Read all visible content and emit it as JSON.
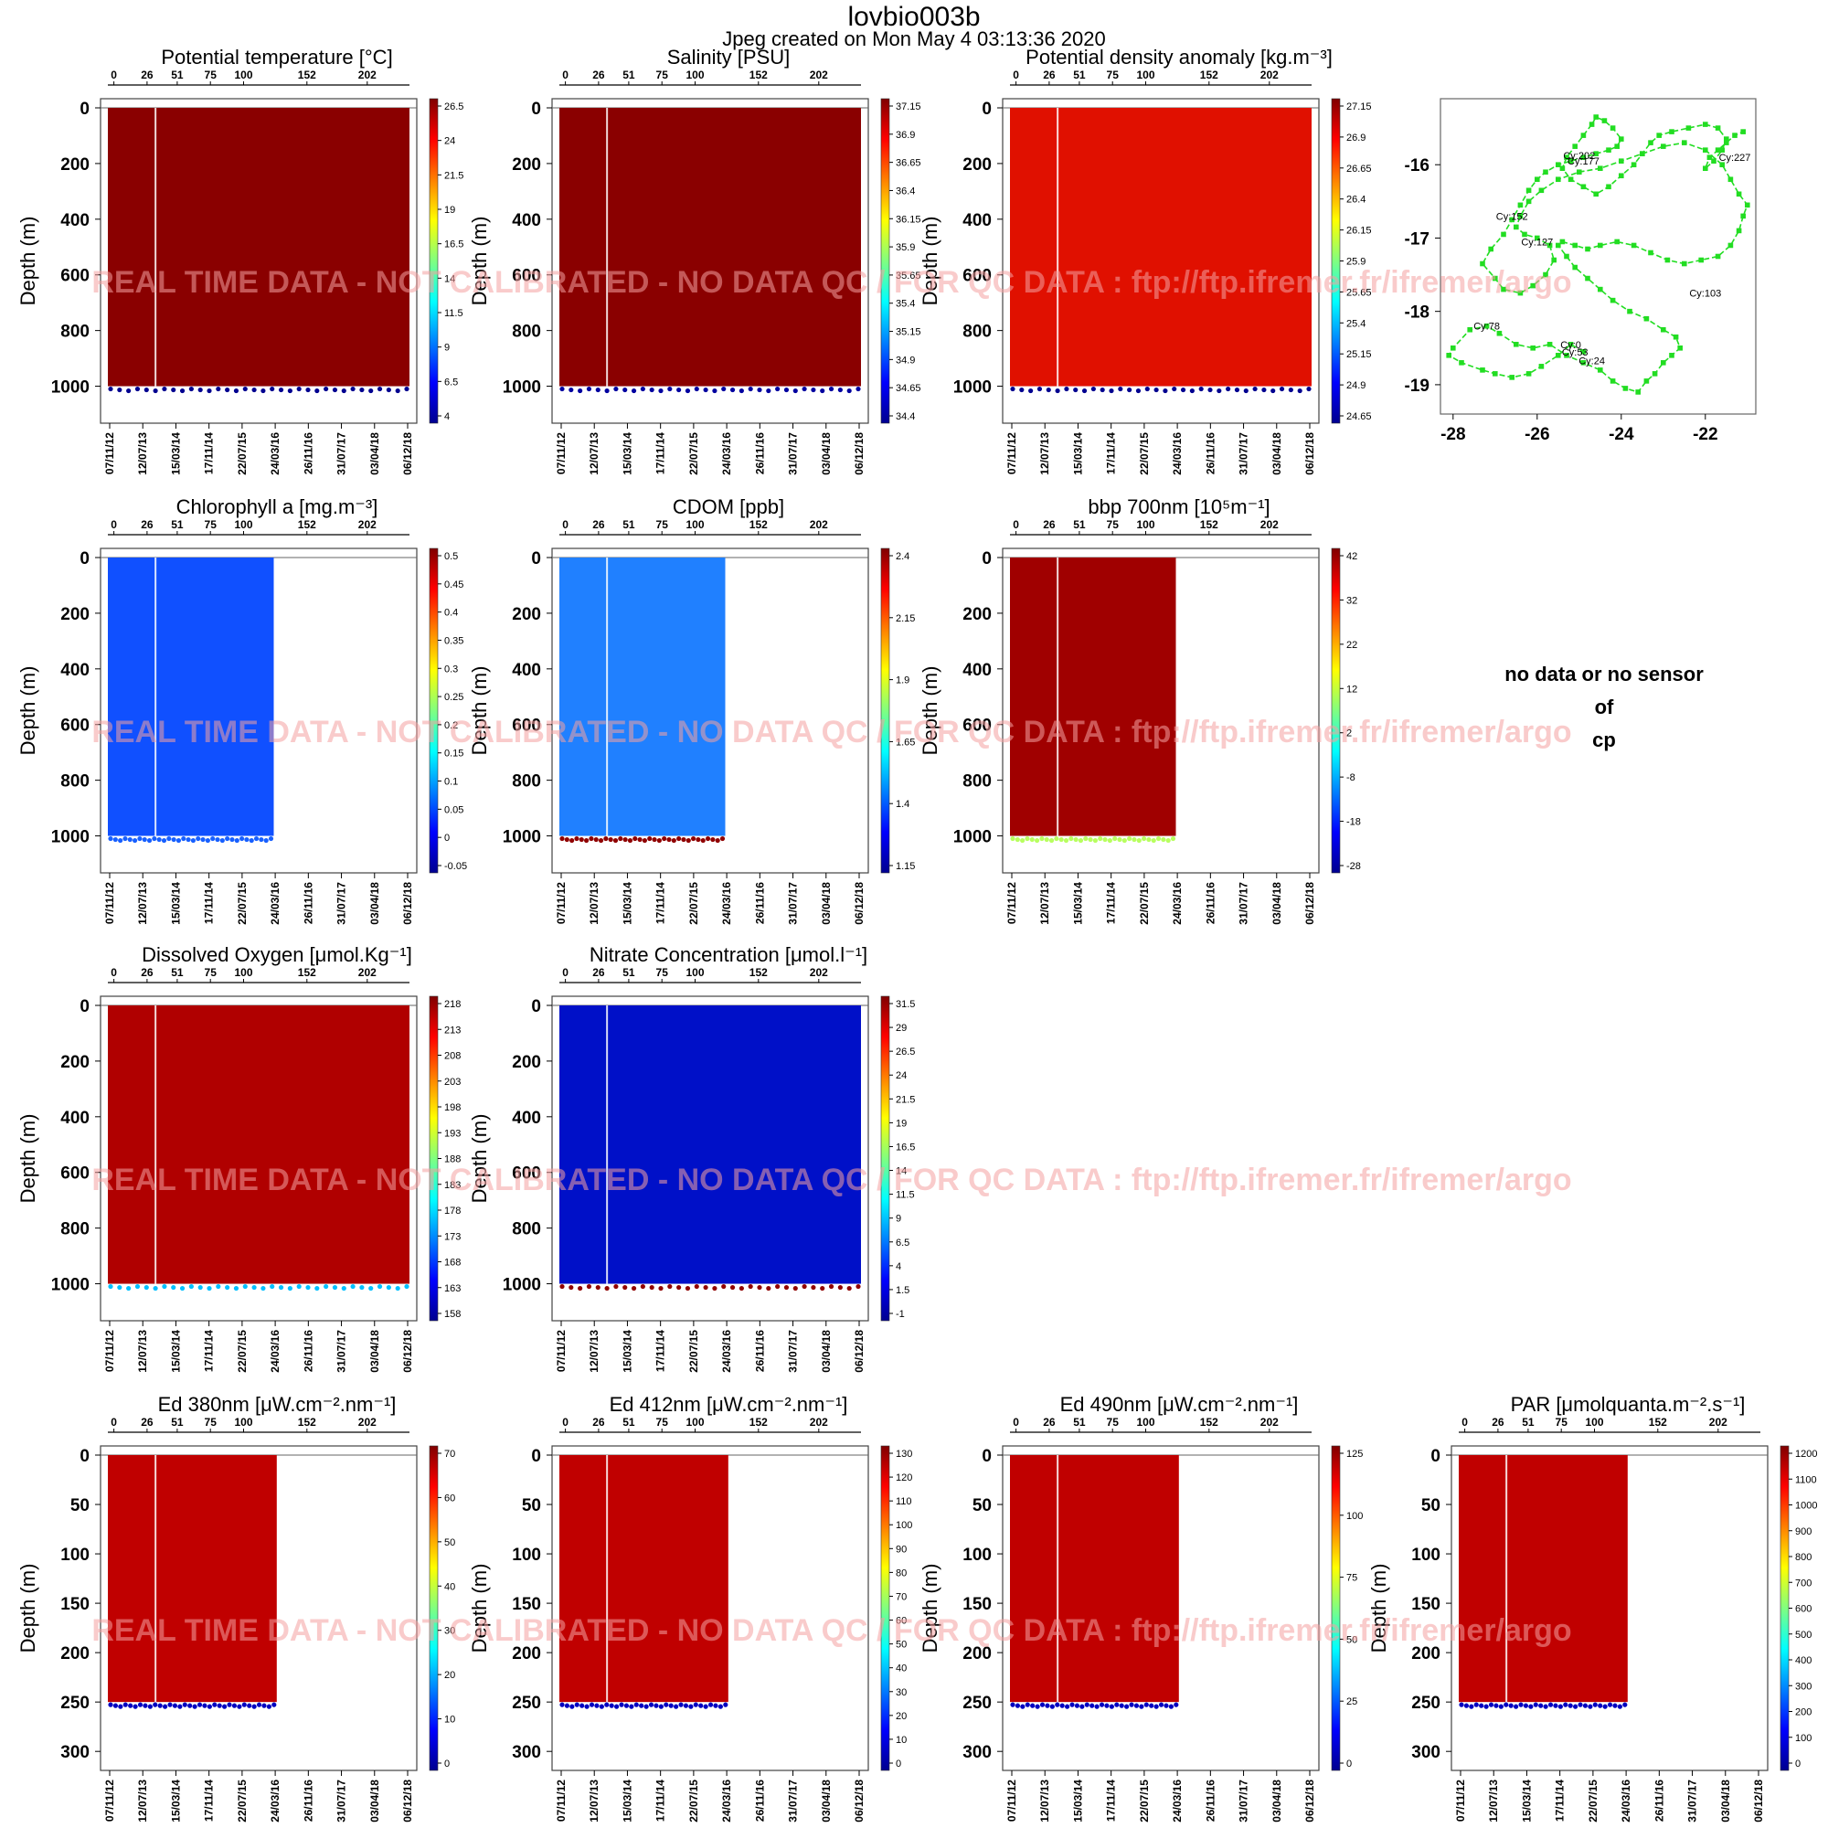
{
  "page": {
    "title": "lovbio003b",
    "subtitle": "Jpeg created on  Mon May  4 03:13:36 2020",
    "watermark": "REAL TIME DATA - NOT CALIBRATED - NO DATA QC  /  FOR QC DATA : ftp://ftp.ifremer.fr/ifremer/argo",
    "no_data_lines": [
      "no data or no sensor",
      "of",
      "cp"
    ]
  },
  "colors": {
    "jet": [
      "#00008f",
      "#0000ff",
      "#0080ff",
      "#00ffff",
      "#80ff80",
      "#ffff00",
      "#ff8000",
      "#ff0000",
      "#800000"
    ],
    "track": "#22dd22",
    "watermark": "#f4a0a0"
  },
  "chart_data": [
    {
      "type": "heatmap",
      "id": "temp",
      "title": "Potential temperature [°C]",
      "ylabel": "Depth (m)",
      "cycle_ticks": [
        "0",
        "26",
        "51",
        "75",
        "100",
        "152",
        "202"
      ],
      "date_ticks": [
        "07/11/12",
        "12/07/13",
        "15/03/14",
        "17/11/14",
        "22/07/15",
        "24/03/16",
        "26/11/16",
        "31/07/17",
        "03/04/18",
        "06/12/18"
      ],
      "y_ticks": [
        "0",
        "200",
        "400",
        "600",
        "800",
        "1000"
      ],
      "colorbar_ticks": [
        "26.5",
        "24",
        "21.5",
        "19",
        "16.5",
        "14",
        "11.5",
        "9",
        "6.5",
        "4"
      ],
      "data_extent": 1.0,
      "profile_depth_max": 1000,
      "ylim": [
        1100,
        0
      ]
    },
    {
      "type": "heatmap",
      "id": "salinity",
      "title": "Salinity [PSU]",
      "ylabel": "Depth (m)",
      "cycle_ticks": [
        "0",
        "26",
        "51",
        "75",
        "100",
        "152",
        "202"
      ],
      "date_ticks": [
        "07/11/12",
        "12/07/13",
        "15/03/14",
        "17/11/14",
        "22/07/15",
        "24/03/16",
        "26/11/16",
        "31/07/17",
        "03/04/18",
        "06/12/18"
      ],
      "y_ticks": [
        "0",
        "200",
        "400",
        "600",
        "800",
        "1000"
      ],
      "colorbar_ticks": [
        "37.15",
        "36.9",
        "36.65",
        "36.4",
        "36.15",
        "35.9",
        "35.65",
        "35.4",
        "35.15",
        "34.9",
        "34.65",
        "34.4"
      ],
      "data_extent": 1.0,
      "profile_depth_max": 1000,
      "ylim": [
        1100,
        0
      ]
    },
    {
      "type": "heatmap",
      "id": "density",
      "title": "Potential density anomaly [kg.m⁻³]",
      "ylabel": "Depth (m)",
      "cycle_ticks": [
        "0",
        "26",
        "51",
        "75",
        "100",
        "152",
        "202"
      ],
      "date_ticks": [
        "07/11/12",
        "12/07/13",
        "15/03/14",
        "17/11/14",
        "22/07/15",
        "24/03/16",
        "26/11/16",
        "31/07/17",
        "03/04/18",
        "06/12/18"
      ],
      "y_ticks": [
        "0",
        "200",
        "400",
        "600",
        "800",
        "1000"
      ],
      "colorbar_ticks": [
        "27.15",
        "26.9",
        "26.65",
        "26.4",
        "26.15",
        "25.9",
        "25.65",
        "25.4",
        "25.15",
        "24.9",
        "24.65"
      ],
      "data_extent": 1.0,
      "profile_depth_max": 1000,
      "ylim": [
        1100,
        0
      ]
    },
    {
      "type": "scatter",
      "id": "trajectory",
      "x_ticks": [
        "-28",
        "-26",
        "-24",
        "-22"
      ],
      "y_ticks": [
        "-16",
        "-17",
        "-18",
        "-19"
      ],
      "xlim": [
        -28.3,
        -20.8
      ],
      "ylim": [
        -19.4,
        -15.1
      ],
      "labels": [
        {
          "text": "Cy:227",
          "lon": -21.3,
          "lat": -15.95
        },
        {
          "text": "Cy:202",
          "lon": -25.0,
          "lat": -15.92
        },
        {
          "text": "Cy:177",
          "lon": -24.9,
          "lat": -16.0
        },
        {
          "text": "Cy:152",
          "lon": -26.6,
          "lat": -16.75
        },
        {
          "text": "Cy:127",
          "lon": -26.0,
          "lat": -17.1
        },
        {
          "text": "Cy:103",
          "lon": -22.0,
          "lat": -17.8
        },
        {
          "text": "Cy:78",
          "lon": -27.2,
          "lat": -18.25
        },
        {
          "text": "Cy:0",
          "lon": -25.2,
          "lat": -18.5
        },
        {
          "text": "Cy:53",
          "lon": -25.1,
          "lat": -18.6
        },
        {
          "text": "Cy:24",
          "lon": -24.7,
          "lat": -18.72
        }
      ],
      "lon": [
        -24.9,
        -25.2,
        -25.5,
        -25.9,
        -26.2,
        -26.6,
        -27.0,
        -27.3,
        -27.8,
        -28.1,
        -28.0,
        -27.6,
        -27.2,
        -26.9,
        -26.5,
        -26.1,
        -25.7,
        -25.3,
        -24.9,
        -24.5,
        -24.2,
        -23.9,
        -23.6,
        -23.4,
        -23.2,
        -23.0,
        -22.8,
        -22.6,
        -22.7,
        -23.0,
        -23.4,
        -23.8,
        -24.2,
        -24.5,
        -24.8,
        -25.1,
        -25.3,
        -25.5,
        -25.4,
        -25.1,
        -24.8,
        -24.5,
        -24.1,
        -23.7,
        -23.3,
        -22.9,
        -22.5,
        -22.1,
        -21.7,
        -21.4,
        -21.2,
        -21.1,
        -21.0,
        -21.2,
        -21.4,
        -21.6,
        -22.0,
        -22.5,
        -23.0,
        -23.5,
        -24.0,
        -24.5,
        -25.0,
        -25.5,
        -25.9,
        -26.2,
        -26.4,
        -26.5,
        -26.3,
        -26.0,
        -25.7,
        -25.6,
        -25.8,
        -26.1,
        -26.4,
        -26.8,
        -27.0,
        -27.3,
        -27.1,
        -26.8,
        -26.6,
        -26.4,
        -26.2,
        -26.0,
        -25.8,
        -25.5,
        -25.2,
        -24.9,
        -24.6,
        -24.3,
        -24.1,
        -24.0,
        -24.2,
        -24.4,
        -24.6,
        -24.7,
        -24.9,
        -25.1,
        -25.3,
        -25.4,
        -25.2,
        -24.9,
        -24.6,
        -24.3,
        -24.0,
        -23.7,
        -23.5,
        -23.3,
        -23.1,
        -22.8,
        -22.4,
        -22.0,
        -21.7,
        -21.5,
        -21.6,
        -21.8,
        -22.0,
        -21.9,
        -21.7,
        -21.5,
        -21.3,
        -21.1
      ],
      "lat": [
        -18.55,
        -18.45,
        -18.6,
        -18.75,
        -18.85,
        -18.9,
        -18.85,
        -18.8,
        -18.7,
        -18.6,
        -18.5,
        -18.25,
        -18.2,
        -18.3,
        -18.45,
        -18.5,
        -18.45,
        -18.6,
        -18.7,
        -18.8,
        -18.95,
        -19.05,
        -19.1,
        -18.95,
        -18.85,
        -18.7,
        -18.6,
        -18.5,
        -18.35,
        -18.25,
        -18.1,
        -18.0,
        -17.85,
        -17.7,
        -17.55,
        -17.4,
        -17.25,
        -17.1,
        -17.05,
        -17.1,
        -17.15,
        -17.1,
        -17.05,
        -17.1,
        -17.2,
        -17.3,
        -17.35,
        -17.3,
        -17.25,
        -17.1,
        -16.9,
        -16.7,
        -16.55,
        -16.4,
        -16.2,
        -16.0,
        -15.8,
        -15.7,
        -15.75,
        -15.85,
        -15.95,
        -16.05,
        -16.1,
        -16.2,
        -16.35,
        -16.5,
        -16.7,
        -16.85,
        -16.95,
        -17.0,
        -17.1,
        -17.3,
        -17.5,
        -17.65,
        -17.75,
        -17.7,
        -17.55,
        -17.35,
        -17.15,
        -16.95,
        -16.75,
        -16.55,
        -16.35,
        -16.2,
        -16.1,
        -16.0,
        -15.95,
        -15.9,
        -15.85,
        -15.8,
        -15.75,
        -15.65,
        -15.5,
        -15.4,
        -15.35,
        -15.45,
        -15.6,
        -15.75,
        -15.9,
        -16.05,
        -16.2,
        -16.3,
        -16.4,
        -16.3,
        -16.15,
        -16.0,
        -15.85,
        -15.7,
        -15.6,
        -15.55,
        -15.5,
        -15.45,
        -15.5,
        -15.65,
        -15.8,
        -15.95,
        -16.05,
        -15.9,
        -15.8,
        -15.7,
        -15.6,
        -15.55
      ]
    },
    {
      "type": "heatmap",
      "id": "chla",
      "title": "Chlorophyll a [mg.m⁻³]",
      "ylabel": "Depth (m)",
      "cycle_ticks": [
        "0",
        "26",
        "51",
        "75",
        "100",
        "152",
        "202"
      ],
      "date_ticks": [
        "07/11/12",
        "12/07/13",
        "15/03/14",
        "17/11/14",
        "22/07/15",
        "24/03/16",
        "26/11/16",
        "31/07/17",
        "03/04/18",
        "06/12/18"
      ],
      "y_ticks": [
        "0",
        "200",
        "400",
        "600",
        "800",
        "1000"
      ],
      "colorbar_ticks": [
        "0.5",
        "0.45",
        "0.4",
        "0.35",
        "0.3",
        "0.25",
        "0.2",
        "0.15",
        "0.1",
        "0.05",
        "0",
        "-0.05"
      ],
      "data_extent": 0.55,
      "profile_depth_max": 1000,
      "ylim": [
        1100,
        0
      ]
    },
    {
      "type": "heatmap",
      "id": "cdom",
      "title": "CDOM  [ppb]",
      "ylabel": "Depth (m)",
      "cycle_ticks": [
        "0",
        "26",
        "51",
        "75",
        "100",
        "152",
        "202"
      ],
      "date_ticks": [
        "07/11/12",
        "12/07/13",
        "15/03/14",
        "17/11/14",
        "22/07/15",
        "24/03/16",
        "26/11/16",
        "31/07/17",
        "03/04/18",
        "06/12/18"
      ],
      "y_ticks": [
        "0",
        "200",
        "400",
        "600",
        "800",
        "1000"
      ],
      "colorbar_ticks": [
        "2.4",
        "2.15",
        "1.9",
        "1.65",
        "1.4",
        "1.15"
      ],
      "data_extent": 0.55,
      "profile_depth_max": 1000,
      "ylim": [
        1100,
        0
      ]
    },
    {
      "type": "heatmap",
      "id": "bbp",
      "title": "bbp 700nm [10⁵m⁻¹]",
      "ylabel": "Depth (m)",
      "cycle_ticks": [
        "0",
        "26",
        "51",
        "75",
        "100",
        "152",
        "202"
      ],
      "date_ticks": [
        "07/11/12",
        "12/07/13",
        "15/03/14",
        "17/11/14",
        "22/07/15",
        "24/03/16",
        "26/11/16",
        "31/07/17",
        "03/04/18",
        "06/12/18"
      ],
      "y_ticks": [
        "0",
        "200",
        "400",
        "600",
        "800",
        "1000"
      ],
      "colorbar_ticks": [
        "42",
        "32",
        "22",
        "12",
        "2",
        "-8",
        "-18",
        "-28"
      ],
      "data_extent": 0.55,
      "profile_depth_max": 1000,
      "ylim": [
        1100,
        0
      ]
    },
    {
      "type": "heatmap",
      "id": "oxygen",
      "title": "Dissolved Oxygen [μmol.Kg⁻¹]",
      "ylabel": "Depth (m)",
      "cycle_ticks": [
        "0",
        "26",
        "51",
        "75",
        "100",
        "152",
        "202"
      ],
      "date_ticks": [
        "07/11/12",
        "12/07/13",
        "15/03/14",
        "17/11/14",
        "22/07/15",
        "24/03/16",
        "26/11/16",
        "31/07/17",
        "03/04/18",
        "06/12/18"
      ],
      "y_ticks": [
        "0",
        "200",
        "400",
        "600",
        "800",
        "1000"
      ],
      "colorbar_ticks": [
        "218",
        "213",
        "208",
        "203",
        "198",
        "193",
        "188",
        "183",
        "178",
        "173",
        "168",
        "163",
        "158"
      ],
      "data_extent": 1.0,
      "profile_depth_max": 1000,
      "ylim": [
        1100,
        0
      ]
    },
    {
      "type": "heatmap",
      "id": "nitrate",
      "title": "Nitrate Concentration [μmol.l⁻¹]",
      "ylabel": "Depth (m)",
      "cycle_ticks": [
        "0",
        "26",
        "51",
        "75",
        "100",
        "152",
        "202"
      ],
      "date_ticks": [
        "07/11/12",
        "12/07/13",
        "15/03/14",
        "17/11/14",
        "22/07/15",
        "24/03/16",
        "26/11/16",
        "31/07/17",
        "03/04/18",
        "06/12/18"
      ],
      "y_ticks": [
        "0",
        "200",
        "400",
        "600",
        "800",
        "1000"
      ],
      "colorbar_ticks": [
        "31.5",
        "29",
        "26.5",
        "24",
        "21.5",
        "19",
        "16.5",
        "14",
        "11.5",
        "9",
        "6.5",
        "4",
        "1.5",
        "-1"
      ],
      "data_extent": 1.0,
      "profile_depth_max": 1000,
      "ylim": [
        1100,
        0
      ]
    },
    {
      "type": "heatmap",
      "id": "ed380",
      "title": "Ed 380nm [μW.cm⁻².nm⁻¹]",
      "ylabel": "Depth (m)",
      "cycle_ticks": [
        "0",
        "26",
        "51",
        "75",
        "100",
        "152",
        "202"
      ],
      "date_ticks": [
        "07/11/12",
        "12/07/13",
        "15/03/14",
        "17/11/14",
        "22/07/15",
        "24/03/16",
        "26/11/16",
        "31/07/17",
        "03/04/18",
        "06/12/18"
      ],
      "y_ticks": [
        "0",
        "50",
        "100",
        "150",
        "200",
        "250",
        "300"
      ],
      "colorbar_ticks": [
        "70",
        "60",
        "50",
        "40",
        "30",
        "20",
        "10",
        "0"
      ],
      "data_extent": 0.56,
      "profile_depth_max": 250,
      "ylim": [
        310,
        0
      ]
    },
    {
      "type": "heatmap",
      "id": "ed412",
      "title": "Ed 412nm [μW.cm⁻².nm⁻¹]",
      "ylabel": "Depth (m)",
      "cycle_ticks": [
        "0",
        "26",
        "51",
        "75",
        "100",
        "152",
        "202"
      ],
      "date_ticks": [
        "07/11/12",
        "12/07/13",
        "15/03/14",
        "17/11/14",
        "22/07/15",
        "24/03/16",
        "26/11/16",
        "31/07/17",
        "03/04/18",
        "06/12/18"
      ],
      "y_ticks": [
        "0",
        "50",
        "100",
        "150",
        "200",
        "250",
        "300"
      ],
      "colorbar_ticks": [
        "130",
        "120",
        "110",
        "100",
        "90",
        "80",
        "70",
        "60",
        "50",
        "40",
        "30",
        "20",
        "10",
        "0"
      ],
      "data_extent": 0.56,
      "profile_depth_max": 250,
      "ylim": [
        310,
        0
      ]
    },
    {
      "type": "heatmap",
      "id": "ed490",
      "title": "Ed 490nm [μW.cm⁻².nm⁻¹]",
      "ylabel": "Depth (m)",
      "cycle_ticks": [
        "0",
        "26",
        "51",
        "75",
        "100",
        "152",
        "202"
      ],
      "date_ticks": [
        "07/11/12",
        "12/07/13",
        "15/03/14",
        "17/11/14",
        "22/07/15",
        "24/03/16",
        "26/11/16",
        "31/07/17",
        "03/04/18",
        "06/12/18"
      ],
      "y_ticks": [
        "0",
        "50",
        "100",
        "150",
        "200",
        "250",
        "300"
      ],
      "colorbar_ticks": [
        "125",
        "100",
        "75",
        "50",
        "25",
        "0"
      ],
      "data_extent": 0.56,
      "profile_depth_max": 250,
      "ylim": [
        310,
        0
      ]
    },
    {
      "type": "heatmap",
      "id": "par",
      "title": "PAR [μmolquanta.m⁻².s⁻¹]",
      "ylabel": "Depth (m)",
      "cycle_ticks": [
        "0",
        "26",
        "51",
        "75",
        "100",
        "152",
        "202"
      ],
      "date_ticks": [
        "07/11/12",
        "12/07/13",
        "15/03/14",
        "17/11/14",
        "22/07/15",
        "24/03/16",
        "26/11/16",
        "31/07/17",
        "03/04/18",
        "06/12/18"
      ],
      "y_ticks": [
        "0",
        "50",
        "100",
        "150",
        "200",
        "250",
        "300"
      ],
      "colorbar_ticks": [
        "1200",
        "1100",
        "1000",
        "900",
        "800",
        "700",
        "600",
        "500",
        "400",
        "300",
        "200",
        "100",
        "0"
      ],
      "data_extent": 0.56,
      "profile_depth_max": 250,
      "ylim": [
        310,
        0
      ]
    }
  ]
}
